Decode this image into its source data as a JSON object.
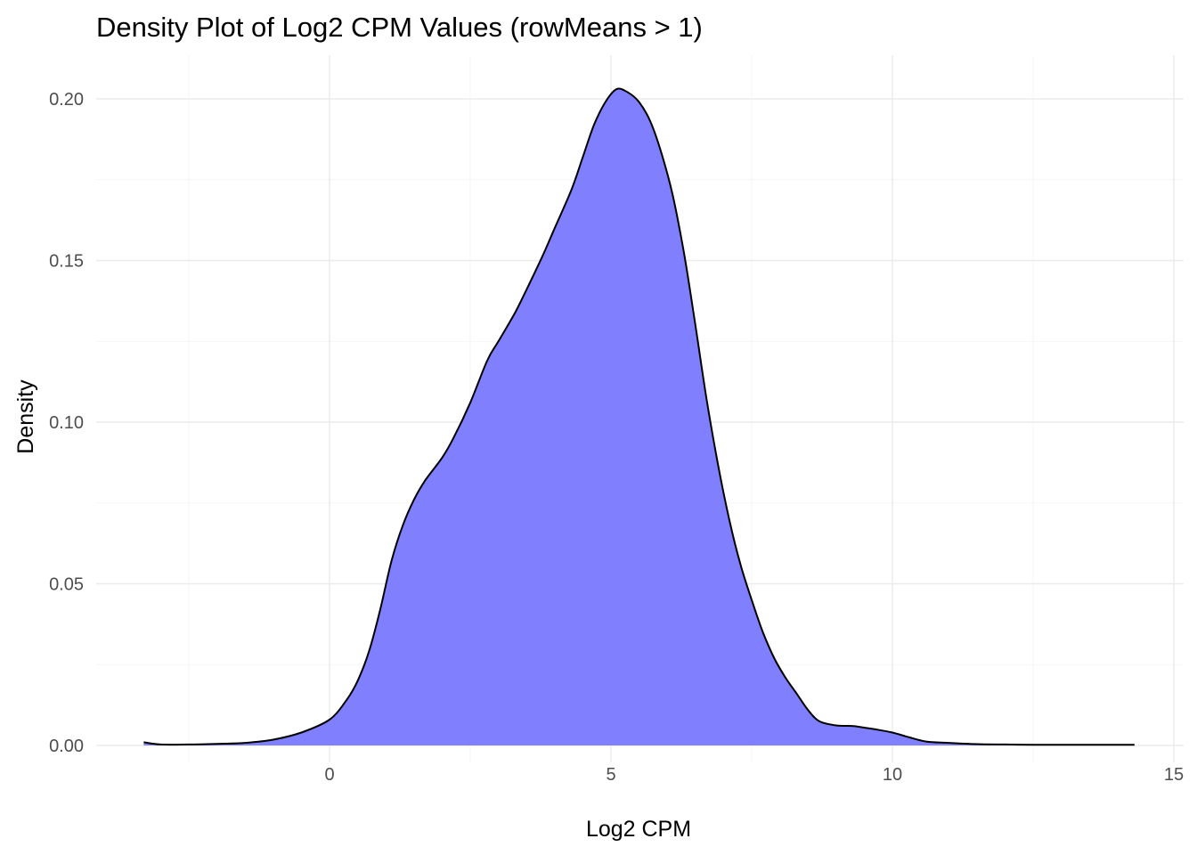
{
  "chart_data": {
    "type": "area",
    "title": "Density Plot of Log2 CPM Values (rowMeans > 1)",
    "xlabel": "Log2 CPM",
    "ylabel": "Density",
    "xlim": [
      -3.3,
      14.3
    ],
    "ylim": [
      0,
      0.204
    ],
    "x_ticks": [
      0,
      5,
      10,
      15
    ],
    "x_tick_labels": [
      "0",
      "5",
      "10",
      "15"
    ],
    "y_ticks": [
      0,
      0.05,
      0.1,
      0.15,
      0.2
    ],
    "y_tick_labels": [
      "0.00",
      "0.05",
      "0.10",
      "0.15",
      "0.20"
    ],
    "grid": true,
    "fill_color": "#8080ff",
    "line_color": "#000000",
    "series": [
      {
        "x": [
          -3.3,
          -3.0,
          -2.5,
          -2.0,
          -1.5,
          -1.0,
          -0.5,
          0.0,
          0.3,
          0.5,
          0.7,
          0.9,
          1.1,
          1.3,
          1.5,
          1.7,
          2.0,
          2.2,
          2.5,
          2.8,
          3.0,
          3.3,
          3.5,
          3.8,
          4.0,
          4.3,
          4.5,
          4.7,
          4.9,
          5.1,
          5.3,
          5.5,
          5.7,
          5.9,
          6.1,
          6.3,
          6.5,
          6.7,
          6.9,
          7.1,
          7.3,
          7.5,
          7.7,
          7.9,
          8.1,
          8.3,
          8.5,
          8.7,
          9.0,
          9.3,
          9.5,
          9.7,
          10.0,
          10.3,
          10.6,
          11.0,
          11.5,
          12.0,
          12.5,
          13.0,
          13.5,
          14.3
        ],
        "y": [
          0.001,
          0.0003,
          0.0003,
          0.0005,
          0.0008,
          0.0018,
          0.004,
          0.008,
          0.014,
          0.02,
          0.029,
          0.042,
          0.057,
          0.068,
          0.076,
          0.082,
          0.089,
          0.095,
          0.106,
          0.119,
          0.125,
          0.134,
          0.141,
          0.152,
          0.16,
          0.172,
          0.182,
          0.192,
          0.199,
          0.203,
          0.202,
          0.199,
          0.193,
          0.183,
          0.17,
          0.152,
          0.13,
          0.107,
          0.087,
          0.07,
          0.056,
          0.045,
          0.035,
          0.027,
          0.021,
          0.016,
          0.011,
          0.0075,
          0.0062,
          0.006,
          0.0055,
          0.005,
          0.004,
          0.0025,
          0.0012,
          0.0008,
          0.0004,
          0.0003,
          0.0002,
          0.0002,
          0.0002,
          0.0002
        ]
      }
    ]
  }
}
